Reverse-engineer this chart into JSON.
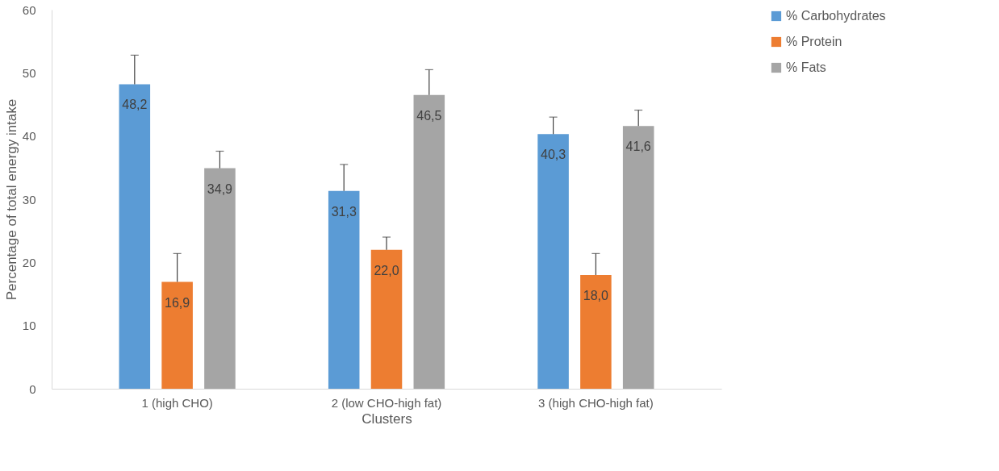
{
  "chart_data": {
    "type": "bar",
    "xlabel": "Clusters",
    "ylabel": "Percentage of total energy intake",
    "categories": [
      "1 (high CHO)",
      "2 (low CHO-high fat)",
      "3 (high CHO-high fat)"
    ],
    "series": [
      {
        "name": "% Carbohydrates",
        "color": "#5b9bd5",
        "values": [
          48.2,
          31.3,
          40.3
        ],
        "value_labels": [
          "48,2",
          "31,3",
          "40,3"
        ],
        "errors": [
          [
            48.2,
            52.8
          ],
          [
            31.3,
            35.5
          ],
          [
            40.3,
            43.0
          ]
        ]
      },
      {
        "name": "% Protein",
        "color": "#ed7d31",
        "values": [
          16.9,
          22.0,
          18.0
        ],
        "value_labels": [
          "16,9",
          "22,0",
          "18,0"
        ],
        "errors": [
          [
            16.9,
            21.4
          ],
          [
            22.0,
            24.0
          ],
          [
            18.0,
            21.4
          ]
        ]
      },
      {
        "name": "% Fats",
        "color": "#a5a5a5",
        "values": [
          34.9,
          46.5,
          41.6
        ],
        "value_labels": [
          "34,9",
          "46,5",
          "41,6"
        ],
        "errors": [
          [
            34.9,
            37.6
          ],
          [
            46.5,
            50.5
          ],
          [
            41.6,
            44.1
          ]
        ]
      }
    ],
    "ylim": [
      0,
      60
    ],
    "yticks": [
      0,
      10,
      20,
      30,
      40,
      50,
      60
    ],
    "grid": false,
    "legend": "right"
  }
}
